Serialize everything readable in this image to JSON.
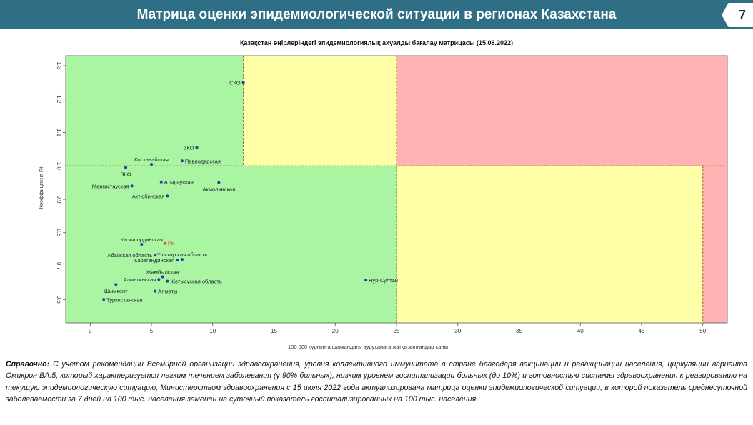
{
  "header": {
    "title": "Матрица оценки эпидемиологической ситуации в регионах Казахстана",
    "page_number": "7"
  },
  "chart_title": "Қазақстан өңірлеріндегі эпидемиологиялық ахуалды бағалау матрицасы  (15.08.2022)",
  "chart_data": {
    "type": "scatter",
    "title": "Қазақстан өңірлеріндегі эпидемиологиялық ахуалды бағалау матрицасы  (15.08.2022)",
    "xlabel": "100 000 тұрғынға шаққандағы ауруханаға жатқызылғандар саны",
    "ylabel": "Коэффициент Rt",
    "xlim": [
      -2,
      52
    ],
    "ylim": [
      0.53,
      1.33
    ],
    "x_ticks": [
      0,
      5,
      10,
      15,
      20,
      25,
      30,
      35,
      40,
      45,
      50
    ],
    "y_ticks": [
      "0.6",
      "0.7",
      "0.8",
      "0.9",
      "1.0",
      "1.1",
      "1.2",
      "1.3"
    ],
    "zone_colors": {
      "green": "#aaf5a2",
      "yellow": "#ffffa8",
      "red": "#ffb3b3"
    },
    "zones": [
      {
        "color": "green",
        "x": [
          -2,
          25
        ],
        "y": [
          0.53,
          1.0
        ]
      },
      {
        "color": "green",
        "x": [
          -2,
          12.5
        ],
        "y": [
          1.0,
          1.33
        ]
      },
      {
        "color": "yellow",
        "x": [
          12.5,
          25
        ],
        "y": [
          1.0,
          1.33
        ]
      },
      {
        "color": "yellow",
        "x": [
          25,
          50
        ],
        "y": [
          0.53,
          1.0
        ]
      },
      {
        "color": "red",
        "x": [
          25,
          52
        ],
        "y": [
          1.0,
          1.33
        ]
      },
      {
        "color": "red",
        "x": [
          50,
          52
        ],
        "y": [
          0.53,
          1.0
        ]
      }
    ],
    "reference_lines": {
      "vertical": [
        12.5,
        25,
        50
      ],
      "horizontal": [
        1.0
      ]
    },
    "points": [
      {
        "label": "СКО",
        "x": 12.5,
        "y": 1.25,
        "color": "#1f3fb0",
        "anchor": "left"
      },
      {
        "label": "ЗКО",
        "x": 8.7,
        "y": 1.055,
        "color": "#1f3fb0",
        "anchor": "left"
      },
      {
        "label": "Павлодарская",
        "x": 7.5,
        "y": 1.015,
        "color": "#1f3fb0",
        "anchor": "right"
      },
      {
        "label": "Костанайская",
        "x": 5.0,
        "y": 1.005,
        "color": "#1f3fb0",
        "anchor": "top"
      },
      {
        "label": "ВКО",
        "x": 2.9,
        "y": 0.995,
        "color": "#1f3fb0",
        "anchor": "below"
      },
      {
        "label": "Мангистауская",
        "x": 3.4,
        "y": 0.94,
        "color": "#1f3fb0",
        "anchor": "left"
      },
      {
        "label": "Атырауская",
        "x": 5.8,
        "y": 0.952,
        "color": "#1f3fb0",
        "anchor": "right"
      },
      {
        "label": "Акмолинская",
        "x": 10.5,
        "y": 0.95,
        "color": "#1f3fb0",
        "anchor": "below"
      },
      {
        "label": "Актюбинская",
        "x": 6.3,
        "y": 0.91,
        "color": "#1f3fb0",
        "anchor": "left"
      },
      {
        "label": "Кызылординская",
        "x": 4.2,
        "y": 0.765,
        "color": "#1f3fb0",
        "anchor": "top"
      },
      {
        "label": "РК",
        "x": 6.1,
        "y": 0.768,
        "color": "#e0502a",
        "anchor": "right"
      },
      {
        "label": "Абайская область",
        "x": 5.3,
        "y": 0.733,
        "color": "#1f3fb0",
        "anchor": "left"
      },
      {
        "label": "Улытауская область",
        "x": 7.5,
        "y": 0.72,
        "color": "#1f3fb0",
        "anchor": "top"
      },
      {
        "label": "Карагандинская",
        "x": 7.1,
        "y": 0.718,
        "color": "#1f3fb0",
        "anchor": "left"
      },
      {
        "label": "Жамбылская",
        "x": 5.9,
        "y": 0.668,
        "color": "#1f3fb0",
        "anchor": "top"
      },
      {
        "label": "Алматинская",
        "x": 5.6,
        "y": 0.66,
        "color": "#1f3fb0",
        "anchor": "left"
      },
      {
        "label": "Жетысуская область",
        "x": 6.3,
        "y": 0.655,
        "color": "#1f3fb0",
        "anchor": "right"
      },
      {
        "label": "Шымкент",
        "x": 2.1,
        "y": 0.645,
        "color": "#1f3fb0",
        "anchor": "below"
      },
      {
        "label": "Алматы",
        "x": 5.3,
        "y": 0.625,
        "color": "#1f3fb0",
        "anchor": "right"
      },
      {
        "label": "Туркестанская",
        "x": 1.1,
        "y": 0.6,
        "color": "#1f3fb0",
        "anchor": "right"
      },
      {
        "label": "Нур-Султан",
        "x": 22.5,
        "y": 0.658,
        "color": "#1f3fb0",
        "anchor": "right"
      }
    ]
  },
  "note": {
    "prefix": "Справочно:",
    "text": " С учетом рекомендации Всемирной организации здравоохранения, уровня коллективного иммунитета в стране благодаря вакцинации и ревакцинации населения, циркуляции варианта Омикрон BA.5, который характеризуется легким течением заболевания (у 90% больных), низким уровнем госпитализации больных (до 10%) и готовностью системы здравоохранения к реагированию на текущую эпидемиологическую ситуацию, Министерством здравоохранения с 15 июля 2022 года актуализирована матрица оценки эпидемиологической ситуации, в которой показатель  среднесуточной заболеваемости за 7 дней на 100 тыс. населения заменен на  суточный показатель госпитализированных на 100 тыс. населения."
  }
}
